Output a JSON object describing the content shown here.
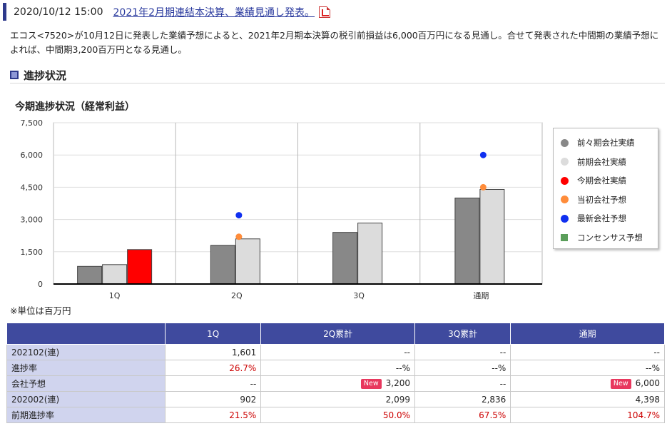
{
  "header": {
    "datetime": "2020/10/12 15:00",
    "title": "2021年2月期連結本決算、業績見通し発表。"
  },
  "summary": "エコス<7520>が10月12日に発表した業績予想によると、2021年2月期本決算の税引前損益は6,000百万円になる見通し。合せて発表された中間期の業績予想によれば、中間期3,200百万円となる見通し。",
  "section": {
    "title": "進捗状況"
  },
  "chart_data": {
    "type": "bar",
    "title": "今期進捗状況（経常利益）",
    "categories": [
      "1Q",
      "2Q",
      "3Q",
      "通期"
    ],
    "ylim": [
      0,
      7500
    ],
    "yticks": [
      "7,500",
      "6,000",
      "4,500",
      "3,000",
      "1,500",
      "0"
    ],
    "ytick_values": [
      7500,
      6000,
      4500,
      3000,
      1500,
      0
    ],
    "grid": true,
    "legend_position": "right",
    "series": [
      {
        "name": "前々期会社実績",
        "kind": "bar",
        "color": "#888888",
        "values": [
          820,
          1800,
          2400,
          4000
        ]
      },
      {
        "name": "前期会社実績",
        "kind": "bar",
        "color": "#dcdcdc",
        "values": [
          902,
          2099,
          2836,
          4398
        ]
      },
      {
        "name": "今期会社実績",
        "kind": "bar",
        "color": "#ff0000",
        "values": [
          1601,
          null,
          null,
          null
        ]
      },
      {
        "name": "当初会社予想",
        "kind": "point",
        "color": "#ff8c3a",
        "values": [
          null,
          2200,
          null,
          4500
        ]
      },
      {
        "name": "最新会社予想",
        "kind": "point",
        "color": "#1030f0",
        "values": [
          null,
          3200,
          null,
          6000
        ]
      },
      {
        "name": "コンセンサス予想",
        "kind": "point",
        "color": "#5a9e5a",
        "shape": "square",
        "values": [
          null,
          null,
          null,
          null
        ]
      }
    ]
  },
  "unit_note": "※単位は百万円",
  "table": {
    "headers": [
      "",
      "1Q",
      "2Q累計",
      "3Q累計",
      "通期"
    ],
    "new_badge": "New",
    "rows": [
      {
        "label": "202102(連)",
        "cells": [
          "1,601",
          "--",
          "--",
          "--"
        ],
        "red": false
      },
      {
        "label": "進捗率",
        "cells": [
          "26.7%",
          "--%",
          "--%",
          "--%"
        ],
        "red_first_only": true
      },
      {
        "label": "会社予想",
        "cells": [
          "--",
          "3,200",
          "--",
          "6,000"
        ],
        "new_cells": [
          1,
          3
        ]
      },
      {
        "label": "202002(連)",
        "cells": [
          "902",
          "2,099",
          "2,836",
          "4,398"
        ],
        "red": false
      },
      {
        "label": "前期進捗率",
        "cells": [
          "21.5%",
          "50.0%",
          "67.5%",
          "104.7%"
        ],
        "red": true
      }
    ]
  }
}
